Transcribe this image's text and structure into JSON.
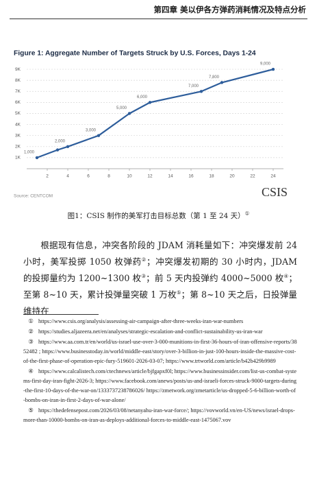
{
  "header": {
    "title": "第四章  美以伊各方弹药消耗情况及特点分析"
  },
  "chart_data": {
    "type": "line",
    "title": "Figure 1: Aggregate Number of Targets Struck by U.S. Forces, Days 1-24",
    "source": "Source: CENTCOM",
    "logo": "CSIS",
    "x": [
      1,
      3,
      4,
      7,
      10,
      12,
      17,
      19,
      24
    ],
    "series": [
      {
        "name": "Targets struck",
        "color": "#2d5d9b",
        "values": [
          1000,
          1700,
          2000,
          3000,
          5000,
          6000,
          7000,
          7800,
          9000
        ],
        "value_labels": [
          "1,000",
          null,
          "2,000",
          "3,000",
          "5,000",
          "6,000",
          "7,000",
          "7,800",
          "9,000"
        ]
      }
    ],
    "xlim": [
      0,
      25
    ],
    "xticks": [
      2,
      4,
      6,
      8,
      10,
      12,
      14,
      16,
      18,
      20,
      22,
      24
    ],
    "ylim": [
      0,
      9500
    ],
    "yticks": [
      {
        "value": 1000,
        "label": "1K"
      },
      {
        "value": 2000,
        "label": "2K"
      },
      {
        "value": 3000,
        "label": "3K"
      },
      {
        "value": 4000,
        "label": "4K"
      },
      {
        "value": 5000,
        "label": "5K"
      },
      {
        "value": 6000,
        "label": "6K"
      },
      {
        "value": 7000,
        "label": "7K"
      },
      {
        "value": 8000,
        "label": "8K"
      },
      {
        "value": 9000,
        "label": "9K"
      }
    ],
    "grid": true
  },
  "caption": {
    "text": "图1：CSIS 制作的美军打击目标总数（第 1 至 24 天）",
    "note": "①"
  },
  "paragraph": [
    {
      "text": "根据现有信息，冲突各阶段的 JDAM 消耗量如下：冲突爆发前 24 小时，美军投掷 1050 枚弹药"
    },
    {
      "sup": "②"
    },
    {
      "text": "；冲突爆发初期的 30 小时内，JDAM 的投掷量约为 1200~1300 枚"
    },
    {
      "sup": "③"
    },
    {
      "text": "；前 5 天内投弹约 4000~5000 枚"
    },
    {
      "sup": "④"
    },
    {
      "text": "；至第 8~10 天，累计投弹量突破 1 万枚"
    },
    {
      "sup": "⑤"
    },
    {
      "text": "；第 8~10 天之后，日投弹量维持在"
    }
  ],
  "footnotes": [
    {
      "num": "①",
      "text": "https://www.csis.org/analysis/assessing-air-campaign-after-three-weeks-iran-war-numbers"
    },
    {
      "num": "②",
      "text": "https://studies.aljazeera.net/en/analyses/strategic-escalation-and-conflict-sustainability-us-iran-war"
    },
    {
      "num": "③",
      "text": "https://www.aa.com.tr/en/world/us-israel-use-over-3-000-munitions-in-first-36-hours-of-iran-offensive-reports/3852482 ; https://www.businesstoday.in/world/middle-east/story/over-3-billion-in-just-100-hours-inside-the-massive-cost-of-the-first-phase-of-operation-epic-fury-519601-2026-03-07; https://www.trtworld.com/article/b42b429b9989"
    },
    {
      "num": "④",
      "text": "https://www.calcalistech.com/ctechnews/article/bjfgapxf0l; https://www.businessinsider.com/list-us-combat-systems-first-day-iran-fight-2026-3; https://www.facebook.com/anews/posts/us-and-israeli-forces-struck-9000-targets-during-the-first-10-days-of-the-war-on/1333737238786026/ https://zmetwork.org/zmetarticle/us-dropped-5-6-billion-worth-of-bombs-on-iran-in-first-2-days-of-war-alone/"
    },
    {
      "num": "⑤",
      "text": "https://thedefensepost.com/2026/03/08/netanyahu-iran-war-force/; https://vovworld.vn/en-US/news/israel-drops-more-than-10000-bombs-on-iran-as-deploys-additional-forces-to-middle-east-1475067.vov"
    }
  ]
}
